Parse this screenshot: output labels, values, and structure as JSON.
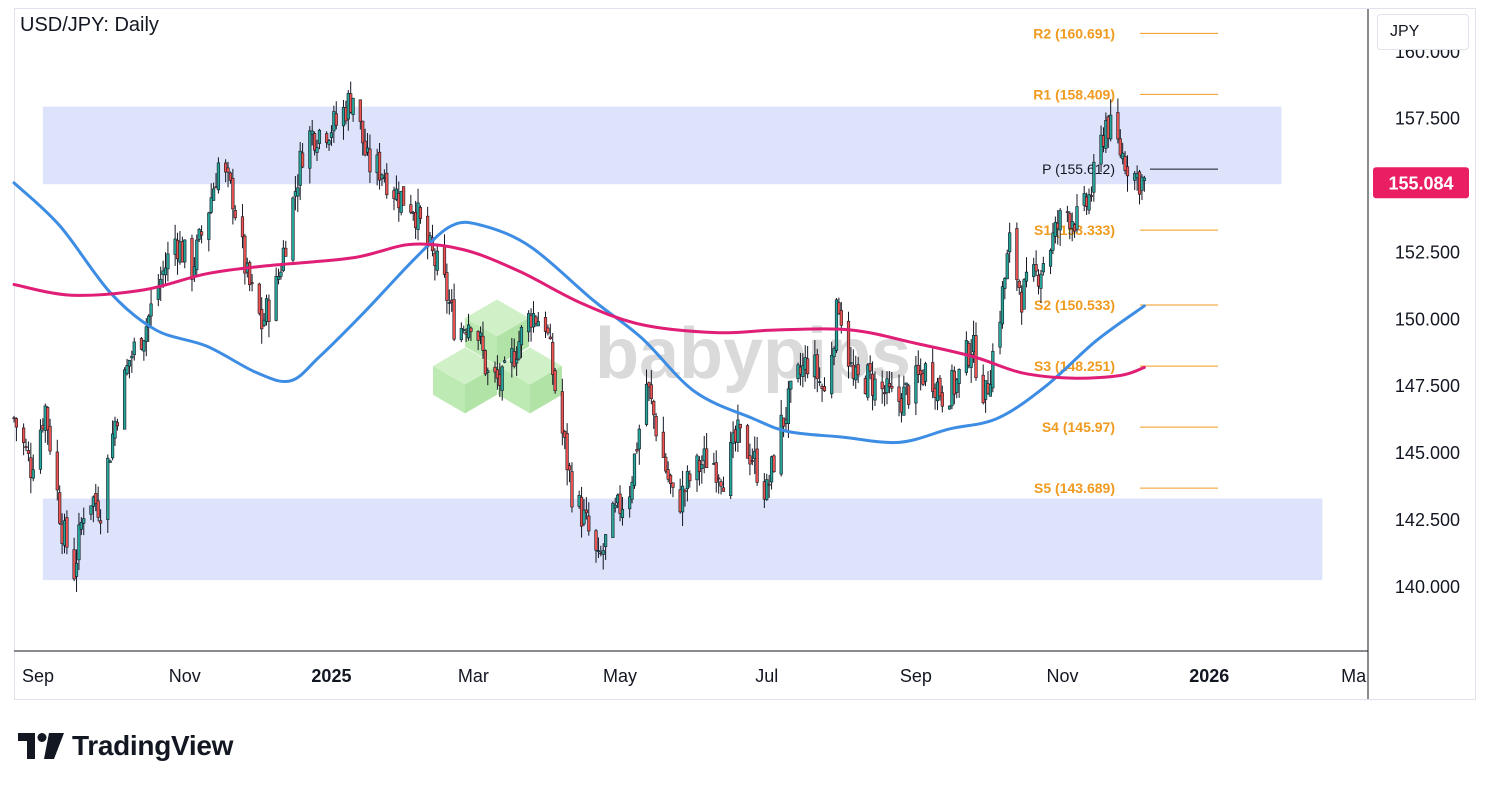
{
  "header": {
    "title": "USD/JPY: Daily",
    "currency": "JPY"
  },
  "branding": {
    "logo_text": "TradingView",
    "watermark": "babypips"
  },
  "colors": {
    "zone": "#dde3fb",
    "bull": "#26a69a",
    "bear": "#ef5350",
    "candle_edge": "#131722",
    "ma_fast": "#3d8de4",
    "ma_slow": "#e01e76",
    "pivot_levels": "#f09a1f",
    "pivot_p": "#131722",
    "price_badge": "#e91e63",
    "watermark_green": "#b2e6a6"
  },
  "chart_data": {
    "type": "candlestick",
    "title": "USD/JPY: Daily",
    "ylim": [
      137.6,
      161.6
    ],
    "y_ticks": [
      "140.000",
      "142.500",
      "145.000",
      "147.500",
      "150.000",
      "152.500",
      "155.000",
      "157.500",
      "160.000"
    ],
    "x_ticks": [
      {
        "label": "Sep",
        "date": "2024-09-01"
      },
      {
        "label": "Nov",
        "date": "2024-11-01"
      },
      {
        "label": "2025",
        "date": "2025-01-01"
      },
      {
        "label": "Mar",
        "date": "2025-03-01"
      },
      {
        "label": "May",
        "date": "2025-05-01"
      },
      {
        "label": "Jul",
        "date": "2025-07-01"
      },
      {
        "label": "Sep",
        "date": "2025-09-01"
      },
      {
        "label": "Nov",
        "date": "2025-11-01"
      },
      {
        "label": "2026",
        "date": "2026-01-01"
      },
      {
        "label": "Ma",
        "date": "2026-03-01"
      }
    ],
    "x_range": [
      "2024-08-22",
      "2026-03-08"
    ],
    "current_price": "155.084",
    "zones": [
      {
        "name": "resistance",
        "date_range": [
          "2024-09-03",
          "2026-01-31"
        ],
        "price_range": [
          155.05,
          157.95
        ]
      },
      {
        "name": "support",
        "date_range": [
          "2024-09-03",
          "2026-02-17"
        ],
        "price_range": [
          140.25,
          143.3
        ]
      }
    ],
    "pivots": [
      {
        "label": "R2 (160.691)",
        "value": 160.691,
        "color": "#f09a1f"
      },
      {
        "label": "R1 (158.409)",
        "value": 158.409,
        "color": "#f09a1f"
      },
      {
        "label": "P (155.612)",
        "value": 155.612,
        "color": "#131722"
      },
      {
        "label": "S1 (153.333)",
        "value": 153.333,
        "color": "#f09a1f"
      },
      {
        "label": "S2 (150.533)",
        "value": 150.533,
        "color": "#f09a1f"
      },
      {
        "label": "S3 (148.251)",
        "value": 148.251,
        "color": "#f09a1f"
      },
      {
        "label": "S4 (145.97)",
        "value": 145.97,
        "color": "#f09a1f"
      },
      {
        "label": "S5 (143.689)",
        "value": 143.689,
        "color": "#f09a1f"
      }
    ],
    "price_path": [
      [
        "2024-08-22",
        146.3
      ],
      [
        "2024-08-29",
        144.5
      ],
      [
        "2024-09-04",
        146.7
      ],
      [
        "2024-09-11",
        142.2
      ],
      [
        "2024-09-16",
        140.6
      ],
      [
        "2024-09-21",
        143.5
      ],
      [
        "2024-09-27",
        143.0
      ],
      [
        "2024-10-03",
        146.2
      ],
      [
        "2024-10-09",
        148.5
      ],
      [
        "2024-10-16",
        149.8
      ],
      [
        "2024-10-22",
        151.5
      ],
      [
        "2024-10-28",
        153.0
      ],
      [
        "2024-11-04",
        151.9
      ],
      [
        "2024-11-10",
        153.8
      ],
      [
        "2024-11-15",
        155.8
      ],
      [
        "2024-11-21",
        154.6
      ],
      [
        "2024-11-27",
        151.5
      ],
      [
        "2024-12-03",
        149.8
      ],
      [
        "2024-12-09",
        151.2
      ],
      [
        "2024-12-15",
        153.9
      ],
      [
        "2024-12-21",
        156.8
      ],
      [
        "2025-01-03",
        157.3
      ],
      [
        "2025-01-10",
        158.4
      ],
      [
        "2025-01-16",
        155.8
      ],
      [
        "2025-01-22",
        155.6
      ],
      [
        "2025-01-28",
        154.7
      ],
      [
        "2025-02-04",
        154.3
      ],
      [
        "2025-02-10",
        152.7
      ],
      [
        "2025-02-16",
        151.6
      ],
      [
        "2025-02-22",
        149.5
      ],
      [
        "2025-03-01",
        150.2
      ],
      [
        "2025-03-07",
        147.9
      ],
      [
        "2025-03-13",
        147.6
      ],
      [
        "2025-03-19",
        149.0
      ],
      [
        "2025-03-25",
        150.2
      ],
      [
        "2025-03-31",
        149.9
      ],
      [
        "2025-04-05",
        146.8
      ],
      [
        "2025-04-11",
        143.6
      ],
      [
        "2025-04-17",
        142.3
      ],
      [
        "2025-04-22",
        140.8
      ],
      [
        "2025-04-28",
        142.5
      ],
      [
        "2025-05-05",
        143.7
      ],
      [
        "2025-05-12",
        147.6
      ],
      [
        "2025-05-18",
        145.2
      ],
      [
        "2025-05-24",
        142.9
      ],
      [
        "2025-05-31",
        144.2
      ],
      [
        "2025-06-07",
        144.9
      ],
      [
        "2025-06-13",
        144.2
      ],
      [
        "2025-06-19",
        145.6
      ],
      [
        "2025-06-25",
        144.9
      ],
      [
        "2025-07-01",
        143.5
      ],
      [
        "2025-07-07",
        146.0
      ],
      [
        "2025-07-13",
        147.6
      ],
      [
        "2025-07-19",
        148.6
      ],
      [
        "2025-07-25",
        147.2
      ],
      [
        "2025-07-31",
        150.7
      ],
      [
        "2025-08-06",
        147.6
      ],
      [
        "2025-08-12",
        147.8
      ],
      [
        "2025-08-18",
        147.3
      ],
      [
        "2025-08-24",
        146.9
      ],
      [
        "2025-08-30",
        147.4
      ],
      [
        "2025-09-06",
        148.2
      ],
      [
        "2025-09-12",
        147.2
      ],
      [
        "2025-09-18",
        147.6
      ],
      [
        "2025-09-24",
        149.1
      ],
      [
        "2025-09-30",
        147.1
      ],
      [
        "2025-10-06",
        150.3
      ],
      [
        "2025-10-10",
        152.8
      ],
      [
        "2025-10-15",
        150.9
      ],
      [
        "2025-10-21",
        151.6
      ],
      [
        "2025-10-27",
        152.8
      ],
      [
        "2025-11-02",
        154.1
      ],
      [
        "2025-11-08",
        153.6
      ],
      [
        "2025-11-13",
        154.8
      ],
      [
        "2025-11-19",
        157.4
      ],
      [
        "2025-11-25",
        156.3
      ],
      [
        "2025-12-01",
        155.4
      ],
      [
        "2025-12-05",
        155.1
      ]
    ],
    "series": [
      {
        "name": "",
        "color": "#3d8de4",
        "points": [
          [
            "2024-08-22",
            155.1
          ],
          [
            "2024-09-10",
            153.5
          ],
          [
            "2024-10-01",
            151.0
          ],
          [
            "2024-10-20",
            149.6
          ],
          [
            "2024-11-10",
            149.0
          ],
          [
            "2024-12-01",
            148.0
          ],
          [
            "2024-12-15",
            147.7
          ],
          [
            "2024-12-27",
            148.6
          ],
          [
            "2025-01-15",
            150.3
          ],
          [
            "2025-02-05",
            152.3
          ],
          [
            "2025-02-20",
            153.5
          ],
          [
            "2025-03-05",
            153.5
          ],
          [
            "2025-03-25",
            152.7
          ],
          [
            "2025-04-20",
            150.7
          ],
          [
            "2025-05-10",
            149.3
          ],
          [
            "2025-06-01",
            147.3
          ],
          [
            "2025-06-25",
            146.3
          ],
          [
            "2025-07-10",
            145.8
          ],
          [
            "2025-08-01",
            145.6
          ],
          [
            "2025-08-25",
            145.4
          ],
          [
            "2025-09-15",
            145.9
          ],
          [
            "2025-10-05",
            146.3
          ],
          [
            "2025-10-25",
            147.5
          ],
          [
            "2025-11-15",
            149.2
          ],
          [
            "2025-12-05",
            150.5
          ]
        ]
      },
      {
        "name": "",
        "color": "#e01e76",
        "points": [
          [
            "2024-08-22",
            151.3
          ],
          [
            "2024-09-15",
            150.9
          ],
          [
            "2024-10-15",
            151.1
          ],
          [
            "2024-11-10",
            151.7
          ],
          [
            "2024-12-05",
            152.0
          ],
          [
            "2025-01-10",
            152.3
          ],
          [
            "2025-02-03",
            152.8
          ],
          [
            "2025-02-25",
            152.6
          ],
          [
            "2025-03-20",
            151.8
          ],
          [
            "2025-04-15",
            150.6
          ],
          [
            "2025-05-10",
            149.8
          ],
          [
            "2025-06-10",
            149.5
          ],
          [
            "2025-07-05",
            149.6
          ],
          [
            "2025-08-05",
            149.6
          ],
          [
            "2025-09-01",
            149.1
          ],
          [
            "2025-09-25",
            148.6
          ],
          [
            "2025-10-15",
            148.0
          ],
          [
            "2025-11-05",
            147.8
          ],
          [
            "2025-11-25",
            147.9
          ],
          [
            "2025-12-05",
            148.2
          ]
        ]
      }
    ]
  }
}
